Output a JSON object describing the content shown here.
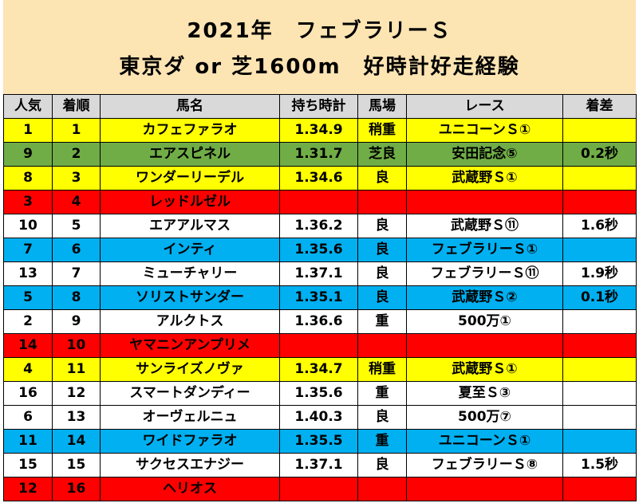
{
  "title": {
    "line1": "2021年　フェブラリーＳ",
    "line2": "東京ダ or 芝1600m　好時計好走経験"
  },
  "table": {
    "headers": [
      "人気",
      "着順",
      "馬名",
      "持ち時計",
      "馬場",
      "レース",
      "着差"
    ],
    "rows": [
      {
        "color": "yellow",
        "cells": [
          "1",
          "1",
          "カフェファラオ",
          "1.34.9",
          "稍重",
          "ユニコーンＳ①",
          ""
        ]
      },
      {
        "color": "green",
        "cells": [
          "9",
          "2",
          "エアスピネル",
          "1.31.7",
          "芝良",
          "安田記念⑤",
          "0.2秒"
        ]
      },
      {
        "color": "yellow",
        "cells": [
          "8",
          "3",
          "ワンダーリーデル",
          "1.34.6",
          "良",
          "武蔵野Ｓ①",
          ""
        ]
      },
      {
        "color": "red",
        "cells": [
          "3",
          "4",
          "レッドルゼル",
          "",
          "",
          "",
          ""
        ]
      },
      {
        "color": "white",
        "cells": [
          "10",
          "5",
          "エアアルマス",
          "1.36.2",
          "良",
          "武蔵野Ｓ⑪",
          "1.6秒"
        ]
      },
      {
        "color": "blue",
        "cells": [
          "7",
          "6",
          "インティ",
          "1.35.6",
          "良",
          "フェブラリーＳ①",
          ""
        ]
      },
      {
        "color": "white",
        "cells": [
          "13",
          "7",
          "ミューチャリー",
          "1.37.1",
          "良",
          "フェブラリーＳ⑪",
          "1.9秒"
        ]
      },
      {
        "color": "blue",
        "cells": [
          "5",
          "8",
          "ソリストサンダー",
          "1.35.1",
          "良",
          "武蔵野Ｓ②",
          "0.1秒"
        ]
      },
      {
        "color": "white",
        "cells": [
          "2",
          "9",
          "アルクトス",
          "1.36.6",
          "重",
          "500万①",
          ""
        ]
      },
      {
        "color": "red",
        "cells": [
          "14",
          "10",
          "ヤマニンアンプリメ",
          "",
          "",
          "",
          ""
        ]
      },
      {
        "color": "yellow",
        "cells": [
          "4",
          "11",
          "サンライズノヴァ",
          "1.34.7",
          "稍重",
          "武蔵野Ｓ①",
          ""
        ]
      },
      {
        "color": "white",
        "cells": [
          "16",
          "12",
          "スマートダンディー",
          "1.35.6",
          "重",
          "夏至Ｓ③",
          ""
        ]
      },
      {
        "color": "white",
        "cells": [
          "6",
          "13",
          "オーヴェルニュ",
          "1.40.3",
          "良",
          "500万⑦",
          ""
        ]
      },
      {
        "color": "blue",
        "cells": [
          "11",
          "14",
          "ワイドファラオ",
          "1.35.5",
          "重",
          "ユニコーンＳ①",
          ""
        ]
      },
      {
        "color": "white",
        "cells": [
          "15",
          "15",
          "サクセスエナジー",
          "1.37.1",
          "良",
          "フェブラリーＳ⑧",
          "1.5秒"
        ]
      },
      {
        "color": "red",
        "cells": [
          "12",
          "16",
          "ヘリオス",
          "",
          "",
          "",
          ""
        ]
      }
    ]
  },
  "colors": {
    "title_bg": "#fce4b3",
    "header_bg": "#d9d9d9",
    "yellow": "#ffff00",
    "green": "#70ad47",
    "red": "#ff0000",
    "blue": "#00b0f0",
    "white": "#ffffff"
  }
}
